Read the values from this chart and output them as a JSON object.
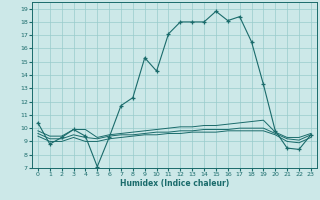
{
  "xlabel": "Humidex (Indice chaleur)",
  "bg_color": "#cce8e8",
  "grid_color": "#99cccc",
  "line_color": "#1a6b6b",
  "ylim": [
    7,
    19.5
  ],
  "xlim": [
    -0.5,
    23.5
  ],
  "yticks": [
    7,
    8,
    9,
    10,
    11,
    12,
    13,
    14,
    15,
    16,
    17,
    18,
    19
  ],
  "xticks": [
    0,
    1,
    2,
    3,
    4,
    5,
    6,
    7,
    8,
    9,
    10,
    11,
    12,
    13,
    14,
    15,
    16,
    17,
    18,
    19,
    20,
    21,
    22,
    23
  ],
  "series_main": {
    "x": [
      0,
      1,
      2,
      3,
      4,
      5,
      6,
      7,
      8,
      9,
      10,
      11,
      12,
      13,
      14,
      15,
      16,
      17,
      18,
      19,
      20,
      21,
      22,
      23
    ],
    "y": [
      10.4,
      8.8,
      9.3,
      9.9,
      9.4,
      7.1,
      9.3,
      11.7,
      12.3,
      15.3,
      14.3,
      17.1,
      18.0,
      18.0,
      18.0,
      18.8,
      18.1,
      18.4,
      16.5,
      13.3,
      9.8,
      8.5,
      8.4,
      9.5
    ]
  },
  "series_line2": {
    "x": [
      0,
      1,
      2,
      3,
      4,
      5,
      6,
      7,
      8,
      9,
      10,
      11,
      12,
      13,
      14,
      15,
      16,
      17,
      18,
      19,
      20,
      21,
      22,
      23
    ],
    "y": [
      9.8,
      9.4,
      9.4,
      9.9,
      9.9,
      9.3,
      9.5,
      9.6,
      9.7,
      9.8,
      9.9,
      10.0,
      10.1,
      10.1,
      10.2,
      10.2,
      10.3,
      10.4,
      10.5,
      10.6,
      9.7,
      9.3,
      9.3,
      9.6
    ]
  },
  "series_line3": {
    "x": [
      0,
      1,
      2,
      3,
      4,
      5,
      6,
      7,
      8,
      9,
      10,
      11,
      12,
      13,
      14,
      15,
      16,
      17,
      18,
      19,
      20,
      21,
      22,
      23
    ],
    "y": [
      9.6,
      9.2,
      9.2,
      9.5,
      9.3,
      9.2,
      9.4,
      9.5,
      9.5,
      9.6,
      9.7,
      9.7,
      9.8,
      9.8,
      9.9,
      9.9,
      9.9,
      10.0,
      10.0,
      10.0,
      9.6,
      9.2,
      9.1,
      9.5
    ]
  },
  "series_line4": {
    "x": [
      0,
      1,
      2,
      3,
      4,
      5,
      6,
      7,
      8,
      9,
      10,
      11,
      12,
      13,
      14,
      15,
      16,
      17,
      18,
      19,
      20,
      21,
      22,
      23
    ],
    "y": [
      9.4,
      9.0,
      9.0,
      9.3,
      9.0,
      9.0,
      9.2,
      9.3,
      9.4,
      9.5,
      9.5,
      9.6,
      9.6,
      9.7,
      9.7,
      9.7,
      9.8,
      9.8,
      9.8,
      9.8,
      9.5,
      9.0,
      8.9,
      9.3
    ]
  }
}
